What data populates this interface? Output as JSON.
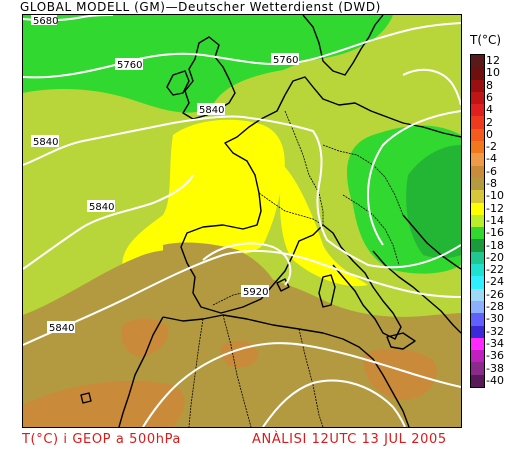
{
  "title": "GLOBAL MODELL (GM)—Deutscher Wetterdienst (DWD)",
  "legend": {
    "title": "T(°C)",
    "entries": [
      {
        "label": "12",
        "color": "#5a1a1a"
      },
      {
        "label": "10",
        "color": "#6e1010"
      },
      {
        "label": "8",
        "color": "#9a0f0f"
      },
      {
        "label": "6",
        "color": "#c01515"
      },
      {
        "label": "4",
        "color": "#e02020"
      },
      {
        "label": "2",
        "color": "#f03a1e"
      },
      {
        "label": "0",
        "color": "#f25a1e"
      },
      {
        "label": "-2",
        "color": "#f2781e"
      },
      {
        "label": "-4",
        "color": "#ee9a46"
      },
      {
        "label": "-6",
        "color": "#c98a3a"
      },
      {
        "label": "-8",
        "color": "#b39a40"
      },
      {
        "label": "-10",
        "color": "#d6c73a"
      },
      {
        "label": "-12",
        "color": "#ffff00"
      },
      {
        "label": "-14",
        "color": "#b8ee2a"
      },
      {
        "label": "-16",
        "color": "#30d830"
      },
      {
        "label": "-18",
        "color": "#1a9a3a"
      },
      {
        "label": "-20",
        "color": "#20c890"
      },
      {
        "label": "-22",
        "color": "#20e0d0"
      },
      {
        "label": "-24",
        "color": "#30f0ff"
      },
      {
        "label": "-26",
        "color": "#a0d8f8"
      },
      {
        "label": "-28",
        "color": "#8ab0ff"
      },
      {
        "label": "-30",
        "color": "#6060ff"
      },
      {
        "label": "-32",
        "color": "#3a2ad8"
      },
      {
        "label": "-34",
        "color": "#ff2aff"
      },
      {
        "label": "-36",
        "color": "#c020c0"
      },
      {
        "label": "-38",
        "color": "#8a2a8a"
      },
      {
        "label": "-40",
        "color": "#5a1a5a"
      }
    ]
  },
  "contours": {
    "c5680": "5680",
    "c5760a": "5760",
    "c5760b": "5760",
    "c5840a": "5840",
    "c5840b": "5840",
    "c5840c": "5840",
    "c5840d": "5840",
    "c5920": "5920"
  },
  "footer": {
    "left": "T(°C) i GEOP a 500hPa",
    "right": "ANÀLISI 12UTC 13 JUL 2005"
  },
  "colors": {
    "field_base": "#b8d639",
    "cold_green": "#30d830",
    "cool_yellow": "#ffff00",
    "olive": "#b39a40",
    "orange": "#c98a3a",
    "contour": "#ffffff",
    "coast": "#000000",
    "footer_text": "#d81b1b"
  }
}
